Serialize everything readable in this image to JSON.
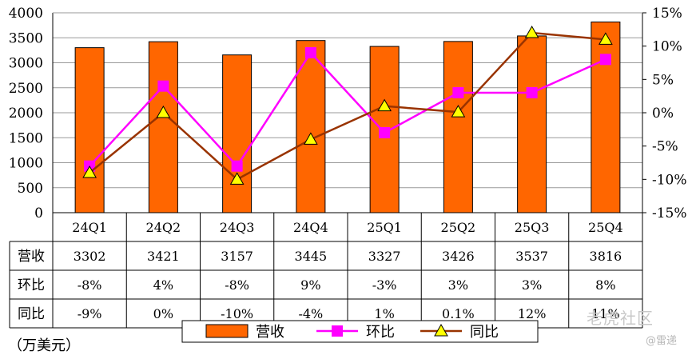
{
  "chart_data": {
    "type": "bar",
    "categories": [
      "24Q1",
      "24Q2",
      "24Q3",
      "24Q4",
      "25Q1",
      "25Q2",
      "25Q3",
      "25Q4"
    ],
    "series": [
      {
        "name": "营收",
        "type": "bar",
        "axis": "left",
        "color": "#ff6600",
        "values": [
          3302,
          3421,
          3157,
          3445,
          3327,
          3426,
          3537,
          3816
        ]
      },
      {
        "name": "环比",
        "type": "line",
        "axis": "right",
        "color": "#ff00ff",
        "marker": "square",
        "values": [
          -8,
          4,
          -8,
          9,
          -3,
          3,
          3,
          8
        ]
      },
      {
        "name": "同比",
        "type": "line",
        "axis": "right",
        "color": "#993300",
        "marker": "triangle",
        "values": [
          -9,
          0,
          -10,
          -4,
          1,
          0.1,
          12,
          11
        ]
      }
    ],
    "ylim": [
      0,
      4000
    ],
    "y_ticks": [
      "0",
      "500",
      "1000",
      "1500",
      "2000",
      "2500",
      "3000",
      "3500",
      "4000"
    ],
    "y2lim": [
      -15,
      15
    ],
    "y2_ticks": [
      "-15%",
      "-10%",
      "-5%",
      "0%",
      "5%",
      "10%",
      "15%"
    ],
    "grid": true,
    "legend": "bottom",
    "table": {
      "rows": [
        {
          "label": "营收",
          "cells": [
            "3302",
            "3421",
            "3157",
            "3445",
            "3327",
            "3426",
            "3537",
            "3816"
          ]
        },
        {
          "label": "环比",
          "cells": [
            "-8%",
            "4%",
            "-8%",
            "9%",
            "-3%",
            "3%",
            "3%",
            "8%"
          ]
        },
        {
          "label": "同比",
          "cells": [
            "-9%",
            "0%",
            "-10%",
            "-4%",
            "1%",
            "0.1%",
            "12%",
            "11%"
          ]
        }
      ]
    }
  },
  "unit_label": "（万美元）",
  "watermark": {
    "main": "老虎社区",
    "sub": "@雷递"
  }
}
